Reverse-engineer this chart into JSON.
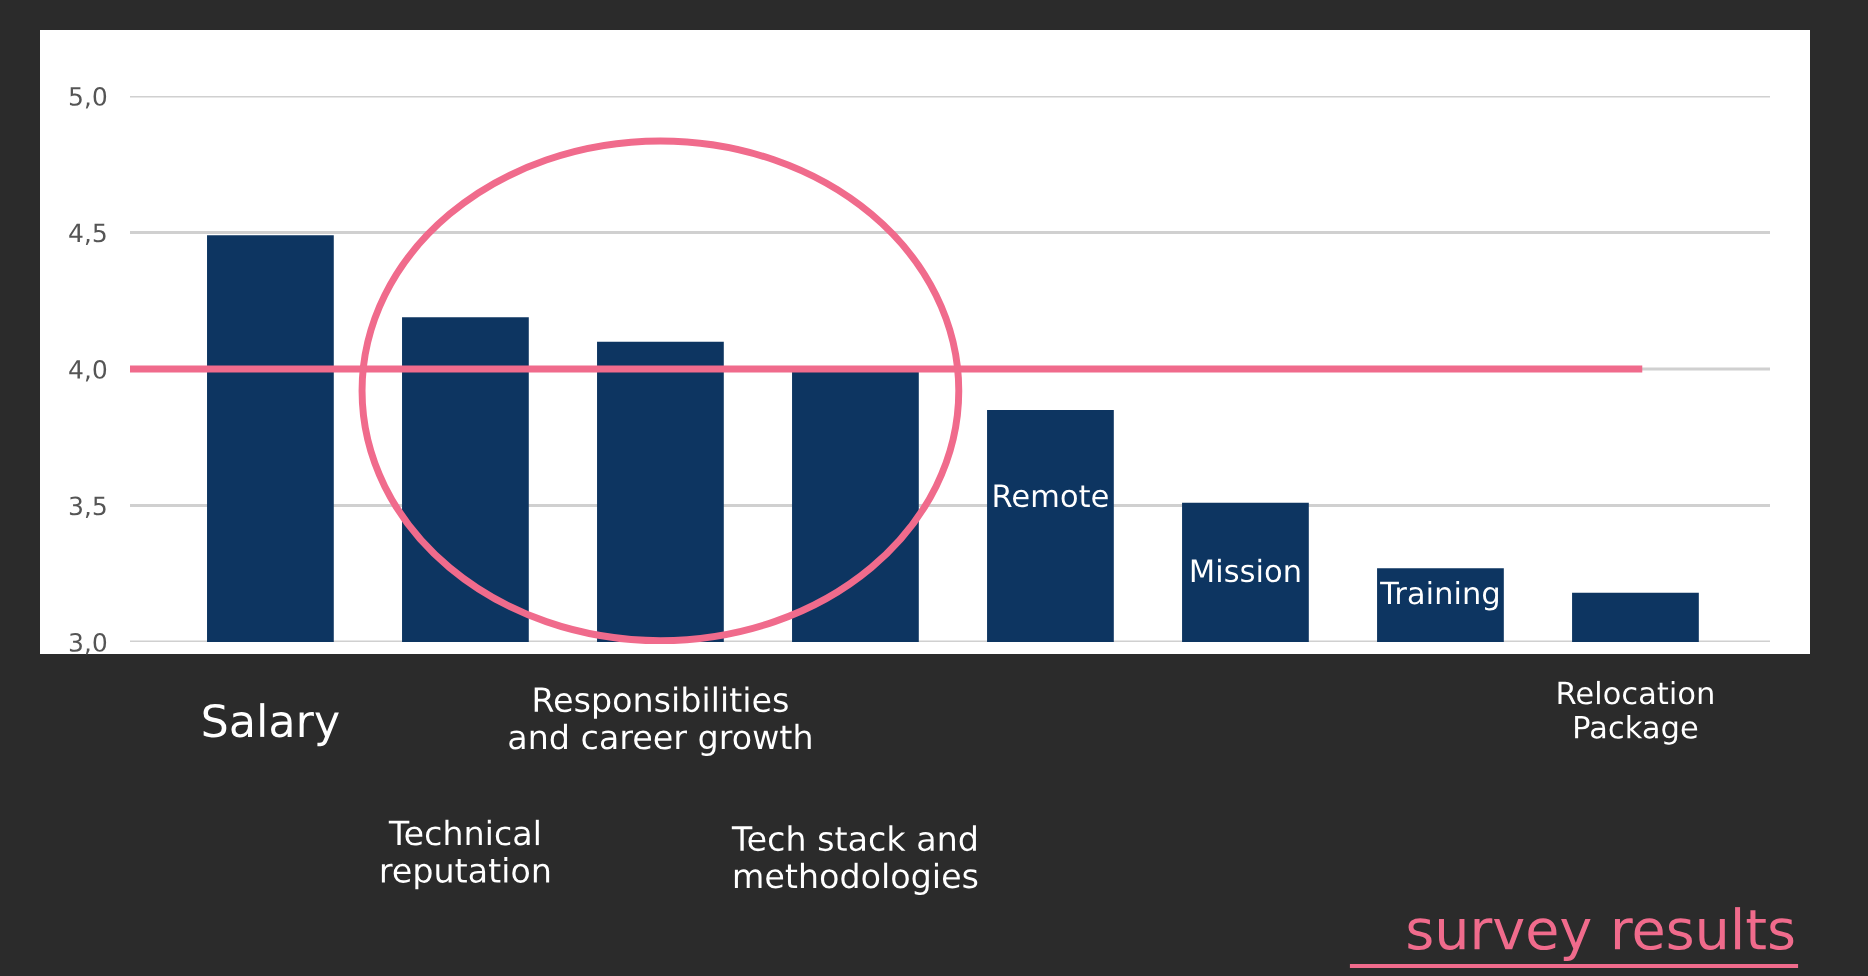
{
  "chart_data": {
    "type": "bar",
    "title": "survey results",
    "categories": [
      "Salary",
      "Technical\nreputation",
      "Responsibilities\nand career growth",
      "Tech stack and\nmethodologies",
      "Remote",
      "Mission",
      "Training",
      "Relocation\nPackage"
    ],
    "values": [
      4.49,
      4.19,
      4.1,
      4.0,
      3.85,
      3.51,
      3.27,
      3.18
    ],
    "color": "#0d3561",
    "ylim": [
      3.0,
      5.0
    ],
    "yticks": [
      {
        "value": 3.0,
        "label": "3,0"
      },
      {
        "value": 3.5,
        "label": "3,5"
      },
      {
        "value": 4.0,
        "label": "4,0"
      },
      {
        "value": 4.5,
        "label": "4,5"
      },
      {
        "value": 5.0,
        "label": "5,0"
      }
    ],
    "grid": "y",
    "ref_lines": [
      {
        "axis": "y",
        "value": 4.0,
        "color": "#f06b8c"
      }
    ]
  }
}
